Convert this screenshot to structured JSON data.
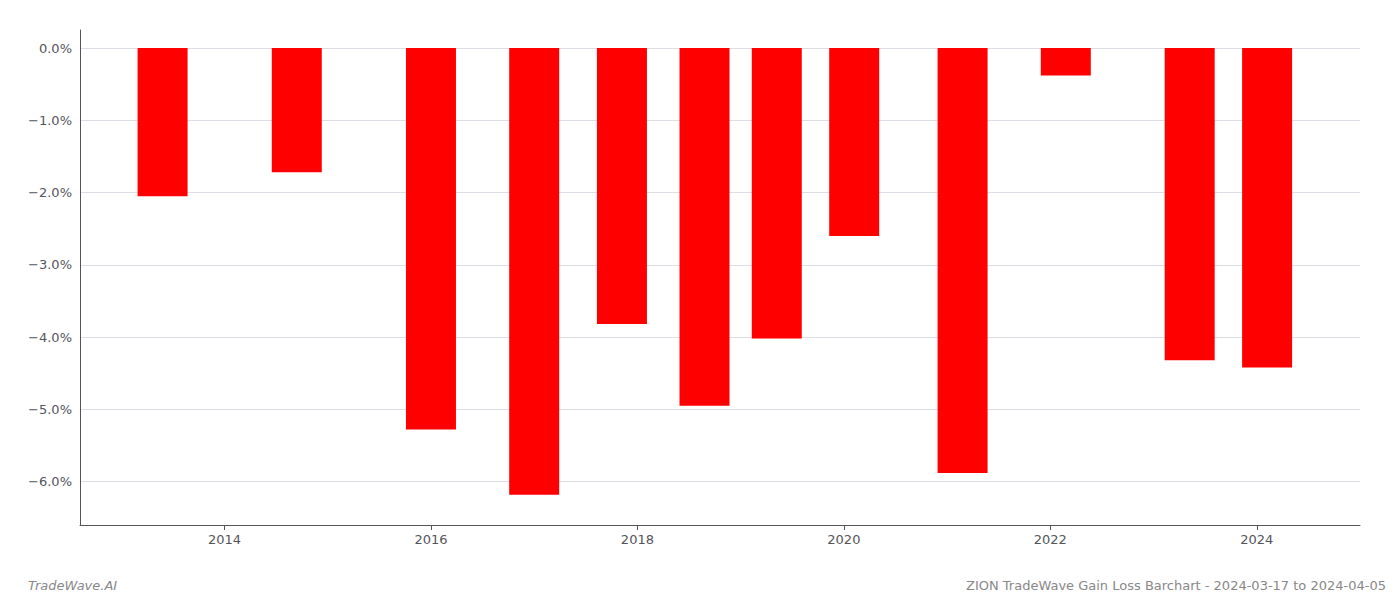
{
  "chart_data": {
    "type": "bar",
    "x": [
      2013.4,
      2014.7,
      2016.0,
      2017.0,
      2017.85,
      2018.65,
      2019.35,
      2020.1,
      2021.15,
      2022.15,
      2023.35,
      2024.1
    ],
    "values": [
      -2.05,
      -1.72,
      -5.28,
      -6.18,
      -3.82,
      -4.95,
      -4.02,
      -2.6,
      -5.88,
      -0.38,
      -4.32,
      -4.42
    ],
    "color": "#ff0000",
    "xlim": [
      2012.6,
      2025.0
    ],
    "xticks": [
      2014,
      2016,
      2018,
      2020,
      2022,
      2024
    ],
    "ylim": [
      -6.6,
      0.25
    ],
    "yticks": [
      {
        "value": 0.0,
        "label": "0.0%"
      },
      {
        "value": -1.0,
        "label": "−1.0%"
      },
      {
        "value": -2.0,
        "label": "−2.0%"
      },
      {
        "value": -3.0,
        "label": "−3.0%"
      },
      {
        "value": -4.0,
        "label": "−4.0%"
      },
      {
        "value": -5.0,
        "label": "−5.0%"
      },
      {
        "value": -6.0,
        "label": "−6.0%"
      }
    ],
    "grid": true,
    "annotations": [
      "TradeWave.AI",
      "ZION TradeWave Gain Loss Barchart - 2024-03-17 to 2024-04-05"
    ]
  }
}
